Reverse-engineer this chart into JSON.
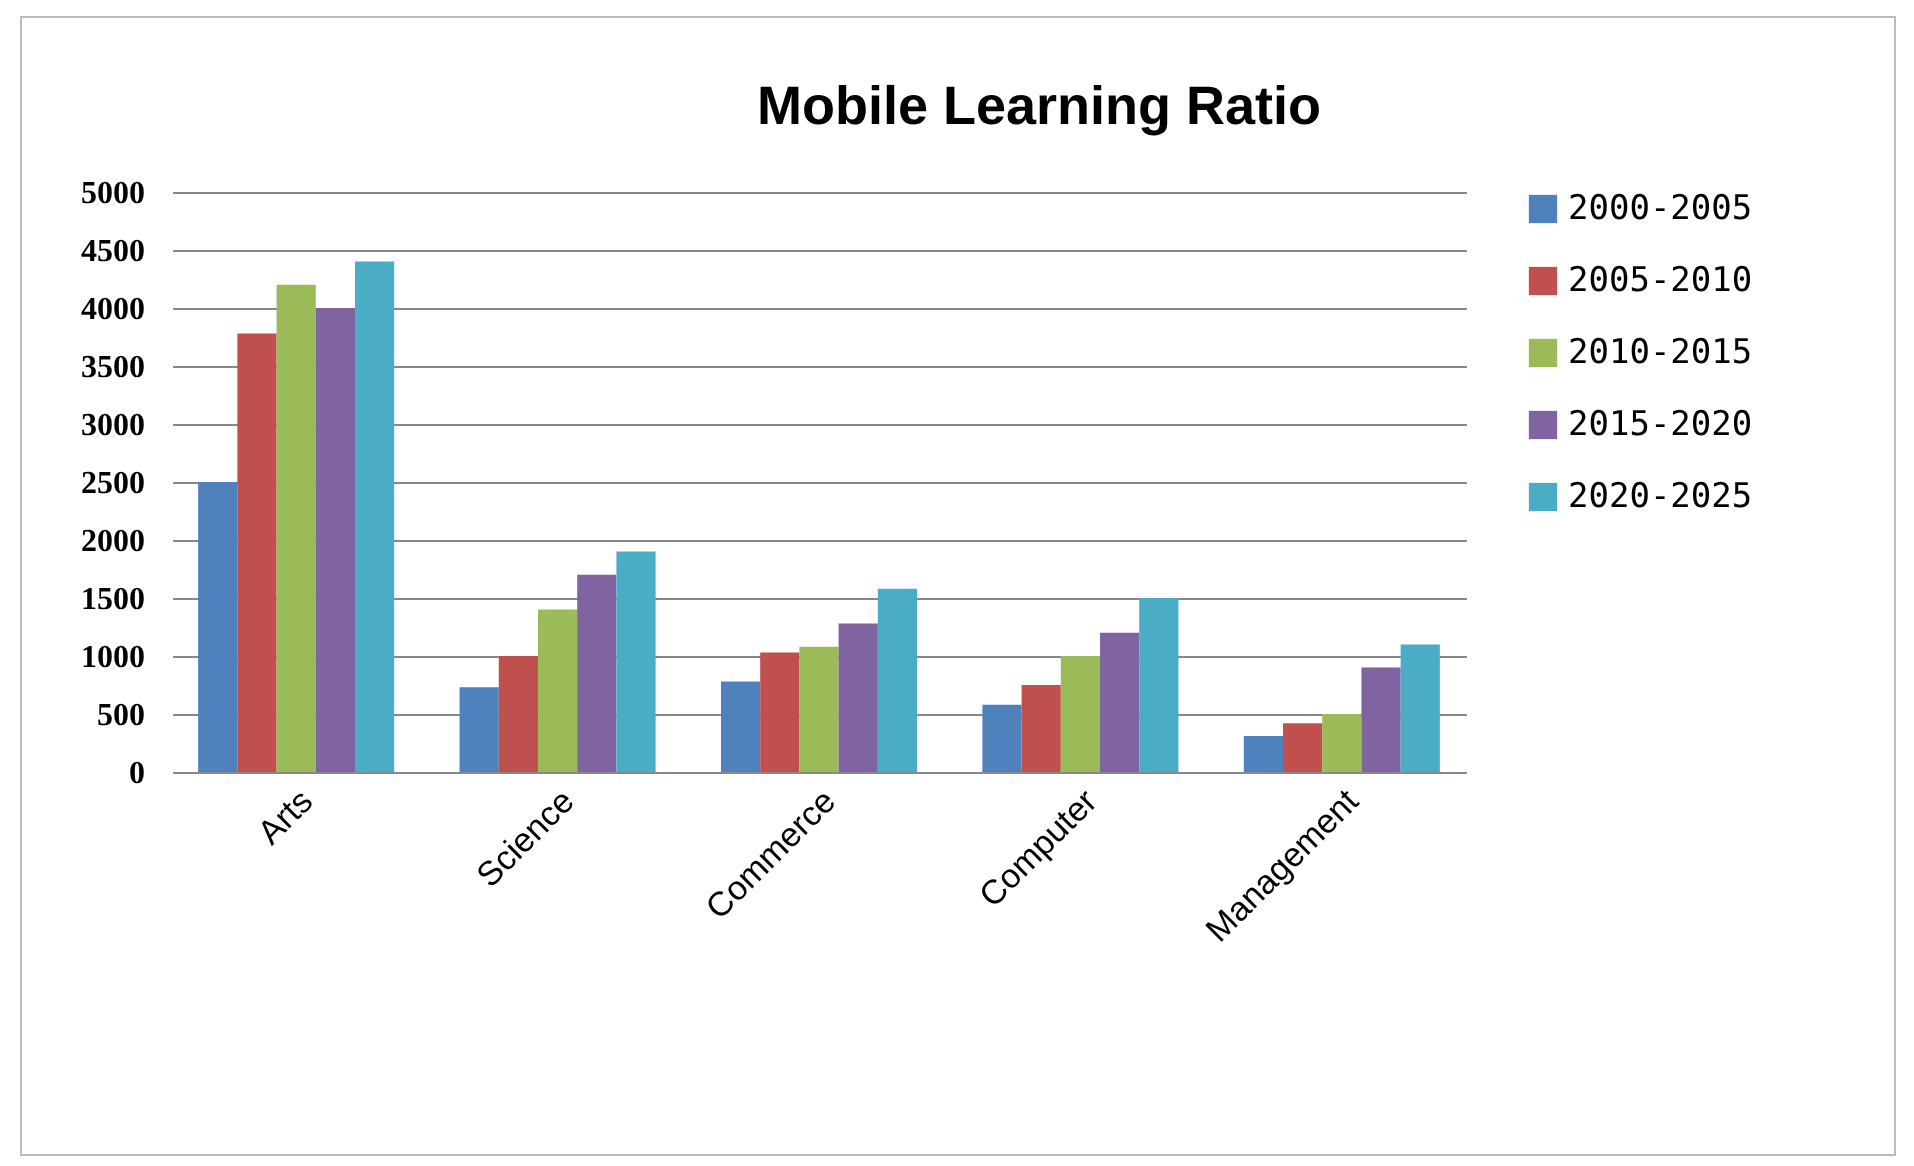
{
  "chart_data": {
    "type": "bar",
    "title": "Mobile  Learning Ratio",
    "categories": [
      "Arts",
      "Science",
      "Commerce",
      "Computer",
      "Management"
    ],
    "series": [
      {
        "name": "2000-2005",
        "color": "#4f81bd",
        "values": [
          2500,
          730,
          780,
          580,
          310
        ]
      },
      {
        "name": "2005-2010",
        "color": "#c0504d",
        "values": [
          3780,
          1000,
          1030,
          750,
          420
        ]
      },
      {
        "name": "2010-2015",
        "color": "#9bbb59",
        "values": [
          4200,
          1400,
          1080,
          1000,
          500
        ]
      },
      {
        "name": "2015-2020",
        "color": "#8064a2",
        "values": [
          4000,
          1700,
          1280,
          1200,
          900
        ]
      },
      {
        "name": "2020-2025",
        "color": "#4bacc6",
        "values": [
          4400,
          1900,
          1580,
          1500,
          1100
        ]
      }
    ],
    "ylim": [
      0,
      5000
    ],
    "yticks": [
      0,
      500,
      1000,
      1500,
      2000,
      2500,
      3000,
      3500,
      4000,
      4500,
      5000
    ],
    "grid": "y",
    "legend": "right"
  }
}
